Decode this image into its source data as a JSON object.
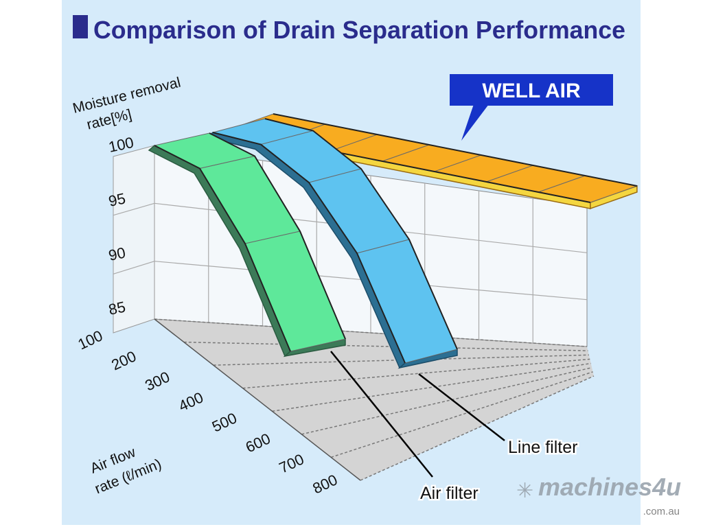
{
  "chart_data": {
    "type": "area",
    "title": "Comparison of Drain Separation Performance",
    "ylabel": "Moisture removal rate[%]",
    "xlabel": "Air flow rate (ℓ/min)",
    "y_ticks": [
      "100",
      "95",
      "90",
      "85"
    ],
    "x_ticks": [
      "100",
      "200",
      "300",
      "400",
      "500",
      "600",
      "700",
      "800"
    ],
    "ylim": [
      85,
      100
    ],
    "xlim": [
      100,
      800
    ],
    "grid": true,
    "series": [
      {
        "name": "WELL AIR",
        "color": "#f8ac20",
        "x": [
          100,
          200,
          300,
          400,
          500,
          600,
          700,
          800
        ],
        "values": [
          100,
          100,
          100,
          100,
          100,
          100,
          100,
          100
        ]
      },
      {
        "name": "Line filter",
        "color": "#5ec3f0",
        "x": [
          100,
          200,
          300,
          400,
          500
        ],
        "values": [
          100,
          99.5,
          97,
          92,
          84
        ]
      },
      {
        "name": "Air filter",
        "color": "#5ee89a",
        "x": [
          100,
          200,
          300,
          400
        ],
        "values": [
          100,
          98.5,
          93,
          85
        ]
      }
    ]
  },
  "watermark": {
    "brand": "machines4u",
    "domain": ".com.au"
  }
}
